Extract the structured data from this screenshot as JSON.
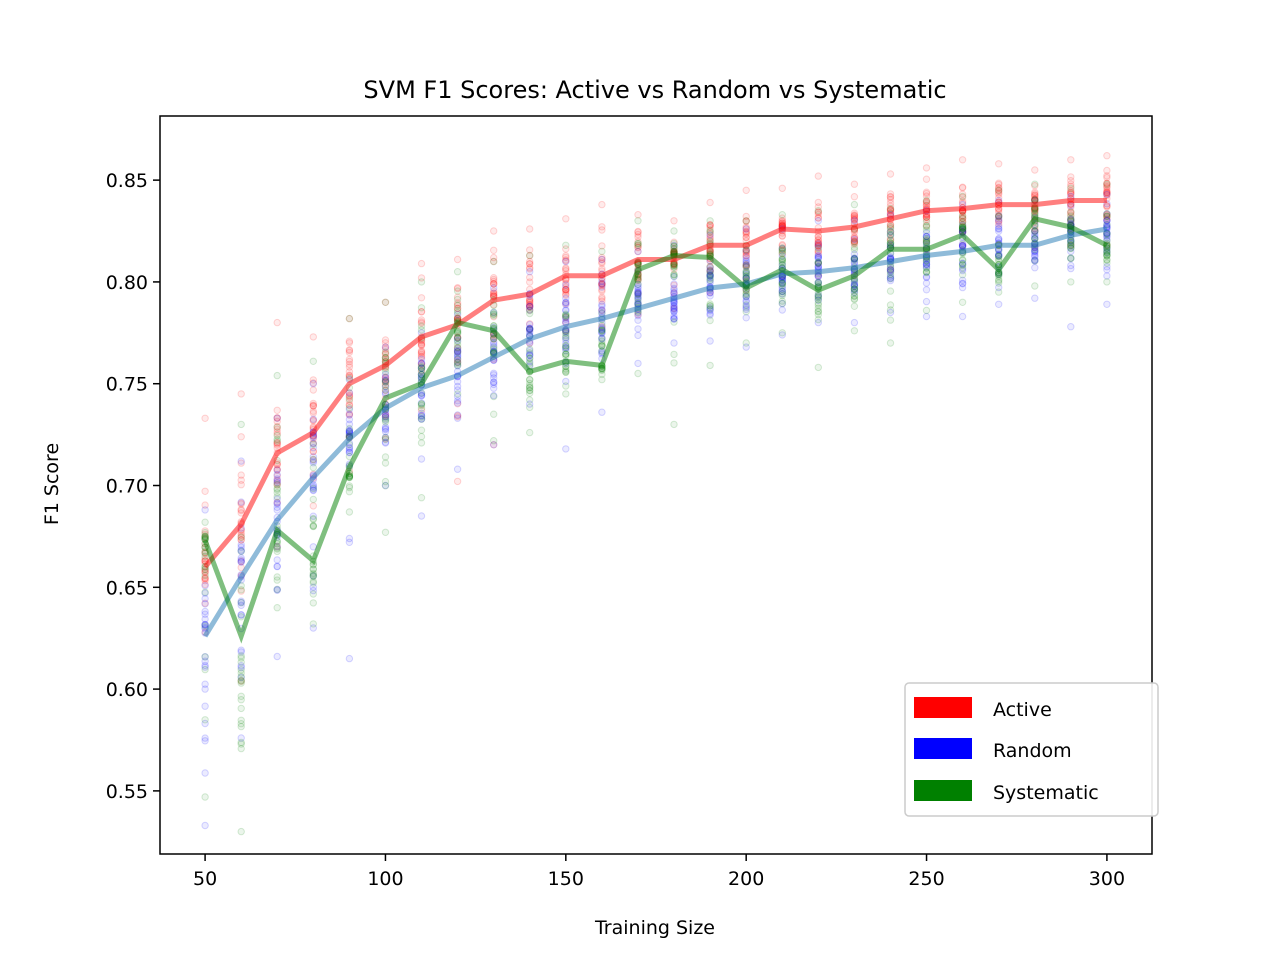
{
  "chart_data": {
    "type": "line",
    "title": "SVM F1 Scores: Active vs Random vs Systematic",
    "xlabel": "Training Size",
    "ylabel": "F1 Score",
    "xlim": [
      37.5,
      312.5
    ],
    "ylim": [
      0.519,
      0.8815
    ],
    "xticks": [
      50,
      100,
      150,
      200,
      250,
      300
    ],
    "yticks": [
      0.55,
      0.6,
      0.65,
      0.7,
      0.75,
      0.8,
      0.85
    ],
    "grid": false,
    "legend_placement": "lower-right",
    "x": [
      50,
      60,
      70,
      80,
      90,
      100,
      110,
      120,
      130,
      140,
      150,
      160,
      170,
      180,
      190,
      200,
      210,
      220,
      230,
      240,
      250,
      260,
      270,
      280,
      290,
      300
    ],
    "series": [
      {
        "name": "Active",
        "color": "#ff0000",
        "mean": [
          0.66,
          0.681,
          0.716,
          0.726,
          0.75,
          0.759,
          0.773,
          0.779,
          0.791,
          0.794,
          0.803,
          0.803,
          0.811,
          0.811,
          0.818,
          0.818,
          0.826,
          0.825,
          0.827,
          0.831,
          0.835,
          0.836,
          0.838,
          0.838,
          0.84,
          0.84
        ],
        "spread": [
          [
            0.628,
            0.733
          ],
          [
            0.604,
            0.745
          ],
          [
            0.67,
            0.78
          ],
          [
            0.69,
            0.773
          ],
          [
            0.707,
            0.782
          ],
          [
            0.723,
            0.79
          ],
          [
            0.737,
            0.809
          ],
          [
            0.702,
            0.811
          ],
          [
            0.72,
            0.825
          ],
          [
            0.77,
            0.826
          ],
          [
            0.776,
            0.831
          ],
          [
            0.778,
            0.838
          ],
          [
            0.784,
            0.833
          ],
          [
            0.787,
            0.83
          ],
          [
            0.795,
            0.839
          ],
          [
            0.796,
            0.845
          ],
          [
            0.803,
            0.846
          ],
          [
            0.803,
            0.852
          ],
          [
            0.803,
            0.848
          ],
          [
            0.806,
            0.853
          ],
          [
            0.816,
            0.856
          ],
          [
            0.818,
            0.86
          ],
          [
            0.818,
            0.858
          ],
          [
            0.817,
            0.855
          ],
          [
            0.818,
            0.86
          ],
          [
            0.818,
            0.862
          ]
        ]
      },
      {
        "name": "Random",
        "color": "#0000ff",
        "mean": [
          0.626,
          0.655,
          0.683,
          0.704,
          0.723,
          0.738,
          0.748,
          0.754,
          0.763,
          0.772,
          0.778,
          0.782,
          0.787,
          0.792,
          0.797,
          0.799,
          0.804,
          0.805,
          0.807,
          0.81,
          0.813,
          0.815,
          0.818,
          0.818,
          0.823,
          0.826
        ],
        "spread": [
          [
            0.533,
            0.688
          ],
          [
            0.576,
            0.712
          ],
          [
            0.616,
            0.733
          ],
          [
            0.63,
            0.75
          ],
          [
            0.615,
            0.752
          ],
          [
            0.7,
            0.768
          ],
          [
            0.685,
            0.775
          ],
          [
            0.708,
            0.784
          ],
          [
            0.72,
            0.797
          ],
          [
            0.74,
            0.805
          ],
          [
            0.718,
            0.81
          ],
          [
            0.736,
            0.811
          ],
          [
            0.76,
            0.815
          ],
          [
            0.77,
            0.818
          ],
          [
            0.771,
            0.823
          ],
          [
            0.768,
            0.826
          ],
          [
            0.774,
            0.826
          ],
          [
            0.78,
            0.83
          ],
          [
            0.78,
            0.83
          ],
          [
            0.785,
            0.833
          ],
          [
            0.783,
            0.835
          ],
          [
            0.783,
            0.838
          ],
          [
            0.789,
            0.84
          ],
          [
            0.792,
            0.84
          ],
          [
            0.778,
            0.842
          ],
          [
            0.789,
            0.843
          ]
        ]
      },
      {
        "name": "Systematic",
        "color": "#008000",
        "mean": [
          0.673,
          0.626,
          0.678,
          0.663,
          0.709,
          0.743,
          0.75,
          0.78,
          0.776,
          0.756,
          0.761,
          0.759,
          0.806,
          0.813,
          0.812,
          0.797,
          0.806,
          0.796,
          0.803,
          0.816,
          0.816,
          0.823,
          0.806,
          0.831,
          0.827,
          0.818
        ],
        "spread": [
          [
            0.547,
            0.682
          ],
          [
            0.53,
            0.73
          ],
          [
            0.64,
            0.754
          ],
          [
            0.632,
            0.761
          ],
          [
            0.687,
            0.782
          ],
          [
            0.677,
            0.79
          ],
          [
            0.694,
            0.8
          ],
          [
            0.745,
            0.805
          ],
          [
            0.722,
            0.81
          ],
          [
            0.726,
            0.813
          ],
          [
            0.745,
            0.818
          ],
          [
            0.752,
            0.815
          ],
          [
            0.755,
            0.83
          ],
          [
            0.73,
            0.825
          ],
          [
            0.759,
            0.83
          ],
          [
            0.77,
            0.83
          ],
          [
            0.775,
            0.833
          ],
          [
            0.758,
            0.835
          ],
          [
            0.776,
            0.838
          ],
          [
            0.77,
            0.836
          ],
          [
            0.786,
            0.84
          ],
          [
            0.79,
            0.842
          ],
          [
            0.795,
            0.845
          ],
          [
            0.798,
            0.848
          ],
          [
            0.8,
            0.846
          ],
          [
            0.8,
            0.848
          ]
        ]
      }
    ],
    "legend": [
      "Active",
      "Random",
      "Systematic"
    ]
  }
}
